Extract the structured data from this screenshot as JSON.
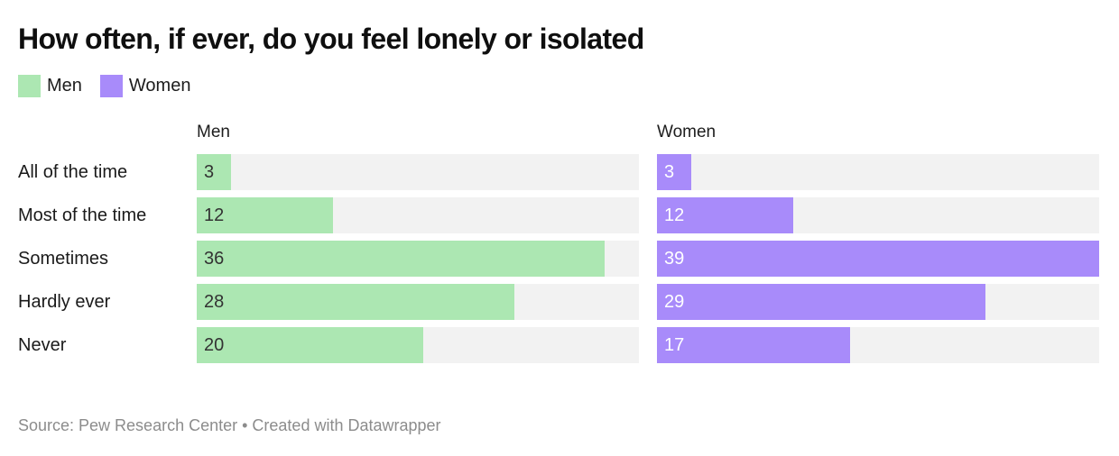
{
  "title": "How often, if ever, do you feel lonely or isolated",
  "footer": "Source: Pew Research Center • Created with Datawrapper",
  "colors": {
    "background": "#ffffff",
    "title_text": "#0f0f0f",
    "body_text": "#1d1d1d",
    "footer_text": "#8c8c8c",
    "track": "#f2f2f2",
    "men": "#ace7b2",
    "women": "#a88bfa"
  },
  "legend": [
    {
      "label": "Men",
      "color": "#ace7b2"
    },
    {
      "label": "Women",
      "color": "#a88bfa"
    }
  ],
  "chart_data": {
    "type": "bar",
    "orientation": "horizontal",
    "layout": "two-panel split bars, one panel per series, shared scale",
    "title": "How often, if ever, do you feel lonely or isolated",
    "categories": [
      "All of the time",
      "Most of the time",
      "Sometimes",
      "Hardly ever",
      "Never"
    ],
    "series": [
      {
        "name": "Men",
        "color": "#ace7b2",
        "value_label_color": "#333333",
        "values": [
          3,
          12,
          36,
          28,
          20
        ]
      },
      {
        "name": "Women",
        "color": "#a88bfa",
        "value_label_color": "#ffffff",
        "values": [
          3,
          12,
          39,
          29,
          17
        ]
      }
    ],
    "xlim": [
      0,
      39
    ],
    "value_labels": "inside-left of each bar",
    "grid": false,
    "legend_position": "top-left under title",
    "track_background": "#f2f2f2"
  }
}
